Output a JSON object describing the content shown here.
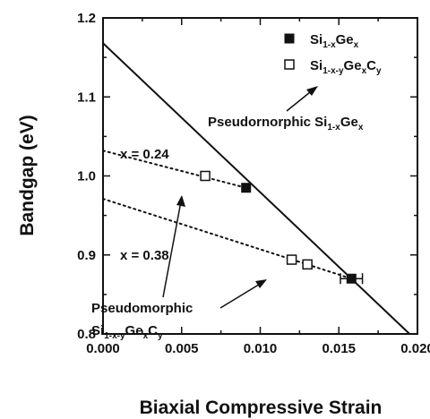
{
  "chart_data": {
    "type": "scatter",
    "title": "",
    "xlabel": "Biaxial Compressive Strain",
    "ylabel": "Bandgap (eV)",
    "xlim": [
      0.0,
      0.02
    ],
    "ylim": [
      0.8,
      1.2
    ],
    "x_ticks": [
      "0.000",
      "0.005",
      "0.010",
      "0.015",
      "0.020"
    ],
    "y_ticks": [
      "0.8",
      "0.9",
      "1.0",
      "1.1",
      "1.2"
    ],
    "legend_position": "top-right",
    "series": [
      {
        "name": "Si1-xGex",
        "marker": "filled-square",
        "points": [
          {
            "x": 0.0091,
            "y": 0.985
          },
          {
            "x": 0.0158,
            "y": 0.87,
            "xerr": 0.0007
          }
        ]
      },
      {
        "name": "Si1-x-yGexCy",
        "marker": "open-square",
        "points": [
          {
            "x": 0.0065,
            "y": 1.0
          },
          {
            "x": 0.012,
            "y": 0.894
          },
          {
            "x": 0.013,
            "y": 0.888
          }
        ]
      }
    ],
    "lines": [
      {
        "id": "pseudomorphic-sige",
        "style": "solid",
        "x": [
          0.0,
          0.0195
        ],
        "y": [
          1.168,
          0.8
        ]
      },
      {
        "id": "x024",
        "style": "dotted",
        "x": [
          0.0,
          0.0091
        ],
        "y": [
          1.032,
          0.985
        ]
      },
      {
        "id": "x038",
        "style": "dotted",
        "x": [
          0.0,
          0.0158
        ],
        "y": [
          0.971,
          0.87
        ]
      }
    ],
    "annotations": {
      "x024": "x = 0.24",
      "x038": "x = 0.38",
      "pseudo_sige_prefix": "Pseudornorphic Si",
      "pseudo_sigec_line1": "Pseudomorphic",
      "legend_si": "Si",
      "sub_1x": "1-x",
      "sub_1xy": "1-x-y",
      "sym_ge": "Ge",
      "sym_c": "C",
      "sub_x": "x",
      "sub_y": "y"
    }
  }
}
